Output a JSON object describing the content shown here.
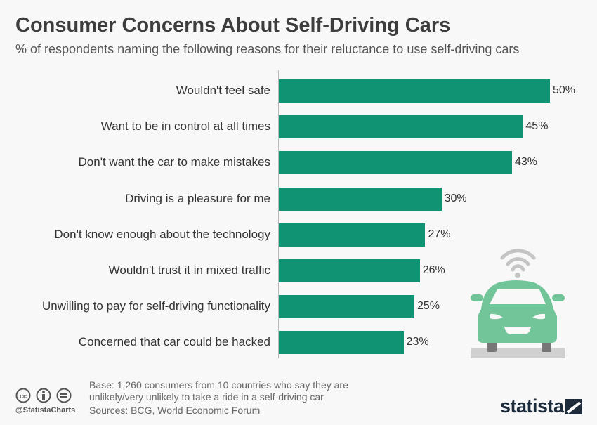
{
  "chart_data": {
    "type": "bar",
    "orientation": "horizontal",
    "title": "Consumer Concerns About Self-Driving Cars",
    "subtitle": "% of respondents naming the following reasons for their reluctance to use self-driving cars",
    "categories": [
      "Wouldn't feel safe",
      "Want to be in control at all times",
      "Don't want the car to make mistakes",
      "Driving is a pleasure for me",
      "Don't know enough about the technology",
      "Wouldn't trust it in mixed traffic",
      "Unwilling to pay for self-driving functionality",
      "Concerned that car could be hacked"
    ],
    "values": [
      50,
      45,
      43,
      30,
      27,
      26,
      25,
      23
    ],
    "value_labels": [
      "50%",
      "45%",
      "43%",
      "30%",
      "27%",
      "26%",
      "25%",
      "23%"
    ],
    "xlim": [
      0,
      50
    ],
    "grid": false,
    "bar_color": "#0f9373"
  },
  "footer": {
    "base": "Base: 1,260 consumers from 10 countries who say they are unlikely/very unlikely to take a ride in a self-driving car",
    "base_line1": "Base: 1,260 consumers from 10 countries who say they are",
    "base_line2": "unlikely/very unlikely to take a ride in a self-driving car",
    "sources": "Sources: BCG, World Economic Forum",
    "handle": "@StatistaCharts",
    "logo": "statista"
  },
  "icons": [
    "cc-icon",
    "attribution-icon",
    "no-derivatives-icon",
    "self-driving-car-icon",
    "wifi-icon",
    "statista-logo-icon"
  ],
  "colors": {
    "car": "#72c499",
    "wifi": "#c4c4c4",
    "text": "#3d3d3d"
  }
}
